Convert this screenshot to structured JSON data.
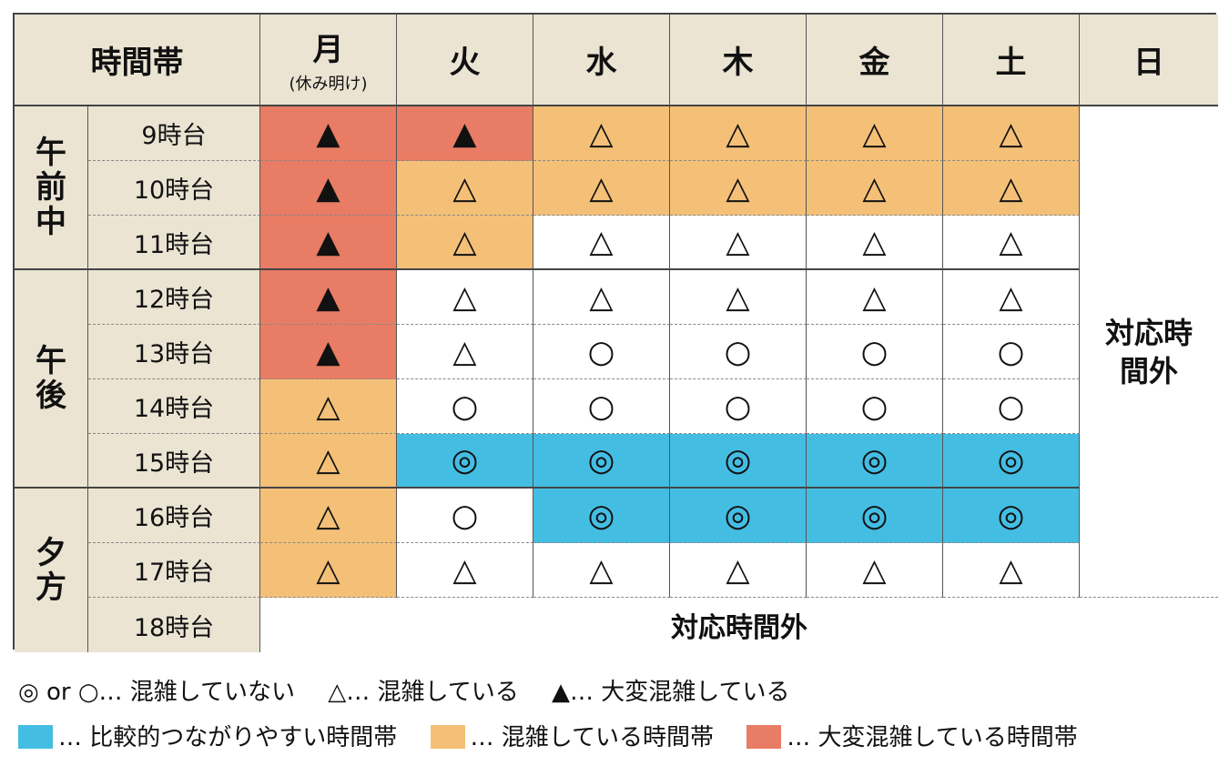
{
  "header": {
    "time_band": "時間帯",
    "days": [
      {
        "label": "月",
        "sub": "(休み明け)"
      },
      {
        "label": "火",
        "sub": ""
      },
      {
        "label": "水",
        "sub": ""
      },
      {
        "label": "木",
        "sub": ""
      },
      {
        "label": "金",
        "sub": ""
      },
      {
        "label": "土",
        "sub": ""
      },
      {
        "label": "日",
        "sub": ""
      }
    ]
  },
  "groups": [
    {
      "label": "午前中",
      "chars": [
        "午",
        "前",
        "中"
      ]
    },
    {
      "label": "午後",
      "chars": [
        "午",
        "後"
      ]
    },
    {
      "label": "夕方",
      "chars": [
        "夕",
        "方"
      ]
    }
  ],
  "rows": [
    {
      "time": "9時台",
      "cells": [
        "▲",
        "▲",
        "△",
        "△",
        "△",
        "△"
      ],
      "levels": [
        "red",
        "red",
        "orange",
        "orange",
        "orange",
        "orange"
      ]
    },
    {
      "time": "10時台",
      "cells": [
        "▲",
        "△",
        "△",
        "△",
        "△",
        "△"
      ],
      "levels": [
        "red",
        "orange",
        "orange",
        "orange",
        "orange",
        "orange"
      ]
    },
    {
      "time": "11時台",
      "cells": [
        "▲",
        "△",
        "△",
        "△",
        "△",
        "△"
      ],
      "levels": [
        "red",
        "orange",
        "white",
        "white",
        "white",
        "white"
      ]
    },
    {
      "time": "12時台",
      "cells": [
        "▲",
        "△",
        "△",
        "△",
        "△",
        "△"
      ],
      "levels": [
        "red",
        "white",
        "white",
        "white",
        "white",
        "white"
      ]
    },
    {
      "time": "13時台",
      "cells": [
        "▲",
        "△",
        "○",
        "○",
        "○",
        "○"
      ],
      "levels": [
        "red",
        "white",
        "white",
        "white",
        "white",
        "white"
      ]
    },
    {
      "time": "14時台",
      "cells": [
        "△",
        "○",
        "○",
        "○",
        "○",
        "○"
      ],
      "levels": [
        "orange",
        "white",
        "white",
        "white",
        "white",
        "white"
      ]
    },
    {
      "time": "15時台",
      "cells": [
        "△",
        "◎",
        "◎",
        "◎",
        "◎",
        "◎"
      ],
      "levels": [
        "orange",
        "blue",
        "blue",
        "blue",
        "blue",
        "blue"
      ]
    },
    {
      "time": "16時台",
      "cells": [
        "△",
        "○",
        "◎",
        "◎",
        "◎",
        "◎"
      ],
      "levels": [
        "orange",
        "white",
        "blue",
        "blue",
        "blue",
        "blue"
      ]
    },
    {
      "time": "17時台",
      "cells": [
        "△",
        "△",
        "△",
        "△",
        "△",
        "△"
      ],
      "levels": [
        "orange",
        "white",
        "white",
        "white",
        "white",
        "white"
      ]
    },
    {
      "time": "18時台"
    }
  ],
  "sunday_text": "対応時間外",
  "row18_text": "対応時間外",
  "colors": {
    "red": "#e87c64",
    "orange": "#f4c078",
    "blue": "#44bde3",
    "header_bg": "#ebe4d3"
  },
  "legend": {
    "line1": [
      {
        "text": "◎ or ○… 混雑していない"
      },
      {
        "text": "△… 混雑している"
      },
      {
        "text": "▲… 大変混雑している"
      }
    ],
    "line2": [
      {
        "color": "blue",
        "text": "… 比較的つながりやすい時間帯"
      },
      {
        "color": "orange",
        "text": "… 混雑している時間帯"
      },
      {
        "color": "red",
        "text": "… 大変混雑している時間帯"
      }
    ]
  }
}
